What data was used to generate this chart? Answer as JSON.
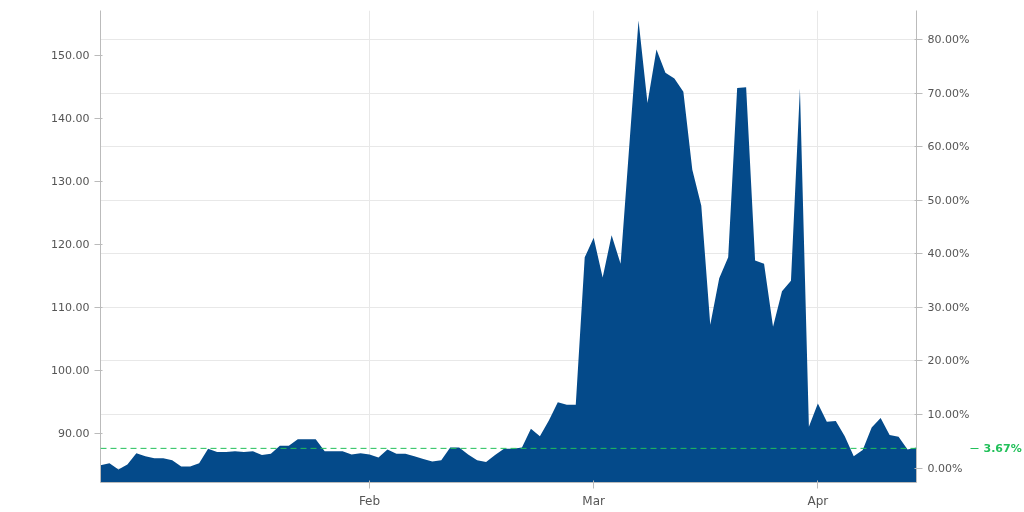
{
  "chart_data": {
    "type": "area",
    "categories": [
      null,
      null,
      null,
      null,
      null,
      null,
      null,
      null,
      null,
      null,
      null,
      null,
      null,
      null,
      null,
      null,
      null,
      null,
      null,
      null,
      null,
      null,
      null,
      null,
      null,
      null,
      null,
      null,
      null,
      null,
      "Feb",
      null,
      null,
      null,
      null,
      null,
      null,
      null,
      null,
      null,
      null,
      null,
      null,
      null,
      null,
      null,
      null,
      null,
      null,
      null,
      null,
      null,
      null,
      null,
      null,
      "Mar",
      null,
      null,
      null,
      null,
      null,
      null,
      null,
      null,
      null,
      null,
      null,
      null,
      null,
      null,
      null,
      null,
      null,
      null,
      null,
      null,
      null,
      null,
      null,
      null,
      "Apr",
      null,
      null,
      null,
      null,
      null,
      null,
      null,
      null,
      null,
      null,
      null
    ],
    "series": [
      {
        "color": "#044a8a",
        "values": [
          84.9,
          85.2,
          84.2,
          85.0,
          86.8,
          86.3,
          86.0,
          86.0,
          85.7,
          84.7,
          84.7,
          85.2,
          87.5,
          87.0,
          87.0,
          87.1,
          87.0,
          87.1,
          86.5,
          86.7,
          88.0,
          88.0,
          89.0,
          89.0,
          89.0,
          87.1,
          87.1,
          87.1,
          86.6,
          86.8,
          86.6,
          86.1,
          87.4,
          86.7,
          86.7,
          86.3,
          85.9,
          85.5,
          85.7,
          87.7,
          87.7,
          86.6,
          85.7,
          85.4,
          86.5,
          87.5,
          87.5,
          87.7,
          90.7,
          89.5,
          92.0,
          94.9,
          94.5,
          94.5,
          117.9,
          121.0,
          114.7,
          121.4,
          116.9,
          136.2,
          155.5,
          142.4,
          150.9,
          147.2,
          146.3,
          144.2,
          131.8,
          126.1,
          107.2,
          114.6,
          117.9,
          144.8,
          144.9,
          117.4,
          116.9,
          106.9,
          112.5,
          114.2,
          144.7,
          91.0,
          94.7,
          91.8,
          91.9,
          89.5,
          86.3,
          87.3,
          90.9,
          92.4,
          89.7,
          89.4,
          87.4,
          87.7
        ]
      }
    ],
    "ylim": [
      82.15,
      157.1
    ],
    "yticks": [
      {
        "value": 90,
        "label": "90.00"
      },
      {
        "value": 100,
        "label": "100.00"
      },
      {
        "value": 110,
        "label": "110.00"
      },
      {
        "value": 120,
        "label": "120.00"
      },
      {
        "value": 130,
        "label": "130.00"
      },
      {
        "value": 140,
        "label": "140.00"
      },
      {
        "value": 150,
        "label": "150.00"
      }
    ],
    "y2lim": [
      -2.7,
      85.4
    ],
    "y2ticks": [
      {
        "value": 0,
        "label": "0.00%"
      },
      {
        "value": 10,
        "label": "10.00%"
      },
      {
        "value": 20,
        "label": "20.00%"
      },
      {
        "value": 30,
        "label": "30.00%"
      },
      {
        "value": 40,
        "label": "40.00%"
      },
      {
        "value": 50,
        "label": "50.00%"
      },
      {
        "value": 60,
        "label": "60.00%"
      },
      {
        "value": 70,
        "label": "70.00%"
      },
      {
        "value": 80,
        "label": "80.00%"
      }
    ],
    "grid": true,
    "ref_lines": [
      {
        "axis": "y2",
        "value": 3.67,
        "label": "3.67%",
        "color": "#22c05a",
        "line_style": "dashed"
      }
    ]
  }
}
